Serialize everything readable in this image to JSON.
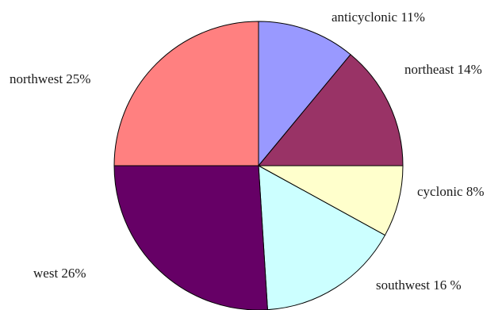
{
  "chart_data": {
    "type": "pie",
    "title": "",
    "start_angle_deg": 90,
    "direction": "clockwise",
    "legend": "none",
    "slices": [
      {
        "name": "anticyclonic",
        "value": 11,
        "label": "anticyclonic 11%",
        "color": "#9999ff"
      },
      {
        "name": "northeast",
        "value": 14,
        "label": "northeast 14%",
        "color": "#993366"
      },
      {
        "name": "cyclonic",
        "value": 8,
        "label": "cyclonic 8%",
        "color": "#ffffcc"
      },
      {
        "name": "southwest",
        "value": 16,
        "label": "southwest 16 %",
        "color": "#ccffff"
      },
      {
        "name": "west",
        "value": 26,
        "label": "west 26%",
        "color": "#660066"
      },
      {
        "name": "northwest",
        "value": 25,
        "label": "northwest 25%",
        "color": "#ff8080"
      }
    ]
  }
}
